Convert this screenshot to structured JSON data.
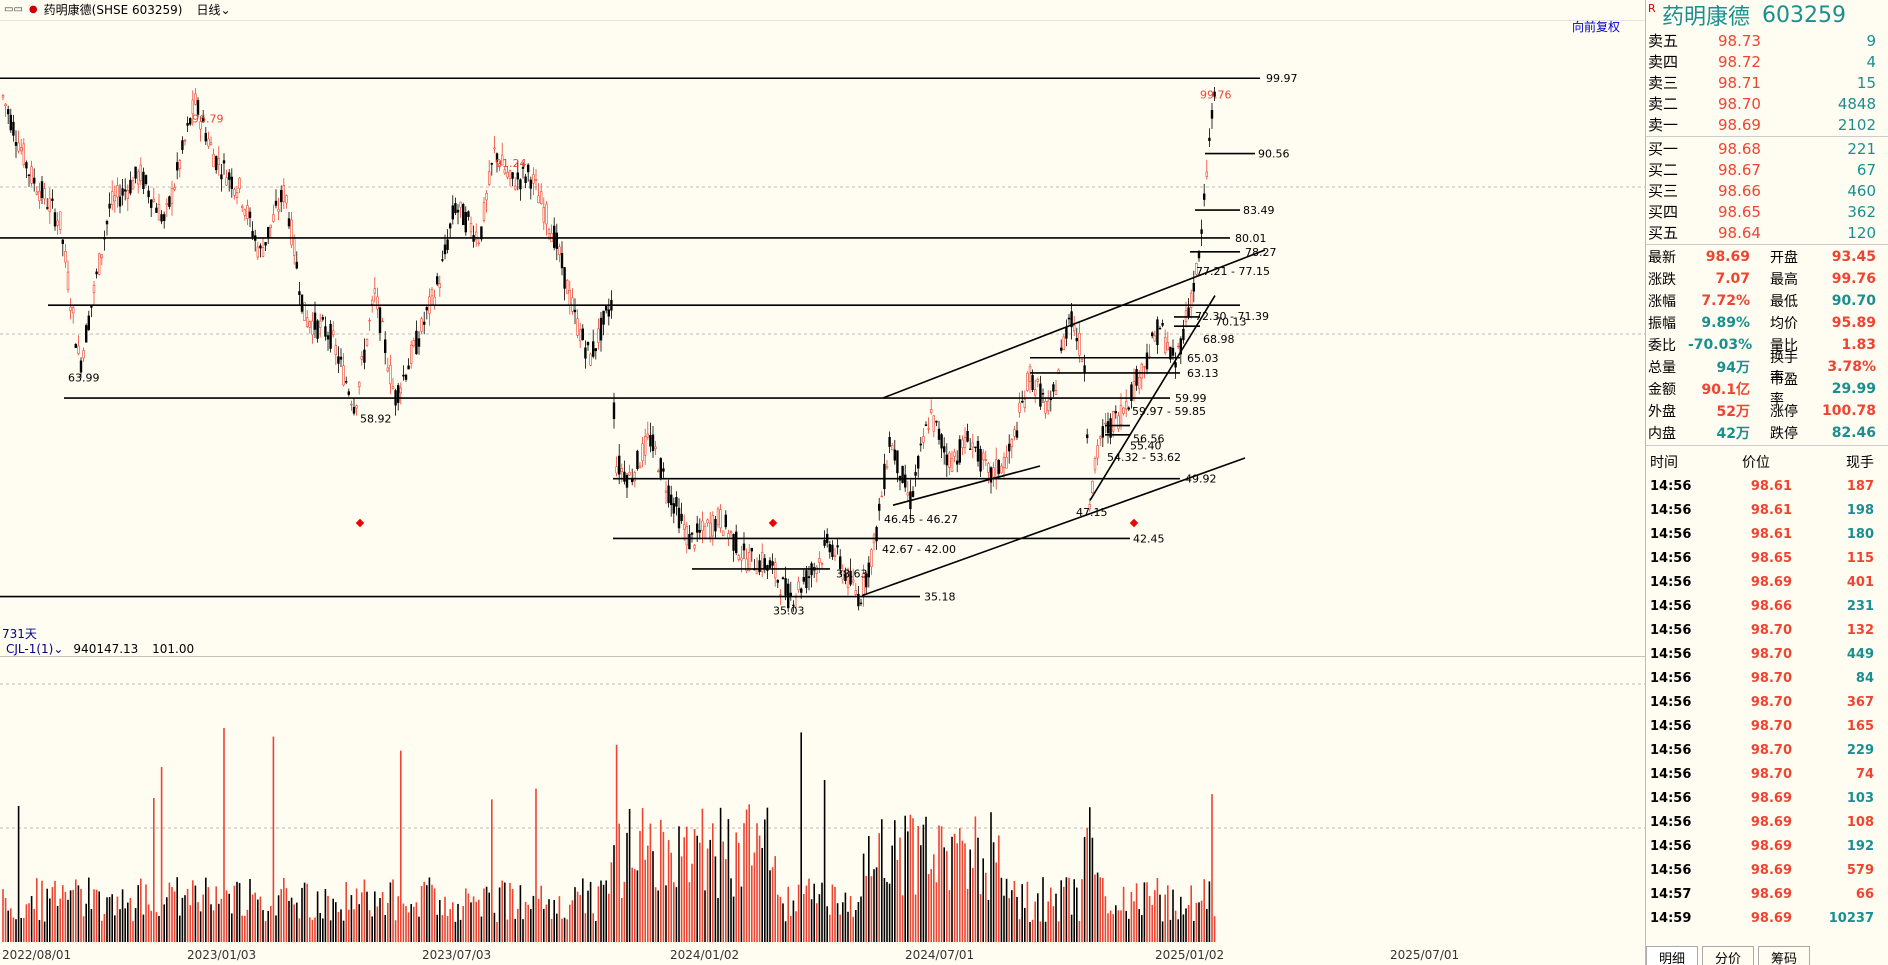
{
  "toolbar": {
    "window_icon": "▭▭",
    "title": "药明康德(SHSE 603259)",
    "period": "日线",
    "restore": "向前复权"
  },
  "main_chart": {
    "days_label": "731天",
    "price_labels": [
      {
        "text": "96.79",
        "color": "#e43"
      },
      {
        "text": "91.24",
        "color": "#e43"
      },
      {
        "text": "99.76",
        "color": "#e43"
      },
      {
        "text": "63.99",
        "color": "#000"
      },
      {
        "text": "58.92",
        "color": "#000"
      },
      {
        "text": "35.03",
        "color": "#000"
      },
      {
        "text": "38.63",
        "color": "#000"
      },
      {
        "text": "42.67 - 42.00",
        "color": "#000"
      },
      {
        "text": "46.45 - 46.27",
        "color": "#000"
      },
      {
        "text": "47.15",
        "color": "#000"
      },
      {
        "text": "54.32 - 53.62",
        "color": "#000"
      },
      {
        "text": "55.40",
        "color": "#000"
      },
      {
        "text": "56.56",
        "color": "#000"
      },
      {
        "text": "59.97 - 59.85",
        "color": "#000"
      },
      {
        "text": "77.21 - 77.15",
        "color": "#000"
      },
      {
        "text": "72.30 - 71.39",
        "color": "#000"
      },
      {
        "text": "70.13",
        "color": "#000"
      },
      {
        "text": "68.98",
        "color": "#000"
      }
    ],
    "line_labels": [
      "99.97",
      "90.56",
      "83.49",
      "80.01",
      "78.27",
      "65.03",
      "63.13",
      "59.99",
      "49.92",
      "42.45",
      "35.18"
    ]
  },
  "indicator": {
    "name": "CJL-1(1)",
    "value1": "940147.13",
    "value2": "101.00"
  },
  "x_axis": [
    "2022/08/01",
    "2023/01/03",
    "2023/07/03",
    "2024/01/02",
    "2024/07/01",
    "2025/01/02",
    "2025/07/01"
  ],
  "quote": {
    "rtag": "R",
    "name": "药明康德",
    "code": "603259",
    "asks": [
      {
        "label": "卖五",
        "price": "98.73",
        "vol": "9"
      },
      {
        "label": "卖四",
        "price": "98.72",
        "vol": "4"
      },
      {
        "label": "卖三",
        "price": "98.71",
        "vol": "15"
      },
      {
        "label": "卖二",
        "price": "98.70",
        "vol": "4848"
      },
      {
        "label": "卖一",
        "price": "98.69",
        "vol": "2102"
      }
    ],
    "bids": [
      {
        "label": "买一",
        "price": "98.68",
        "vol": "221"
      },
      {
        "label": "买二",
        "price": "98.67",
        "vol": "67"
      },
      {
        "label": "买三",
        "price": "98.66",
        "vol": "460"
      },
      {
        "label": "买四",
        "price": "98.65",
        "vol": "362"
      },
      {
        "label": "买五",
        "price": "98.64",
        "vol": "120"
      }
    ],
    "stats": [
      {
        "k1": "最新",
        "v1": "98.69",
        "c1": "red",
        "k2": "开盘",
        "v2": "93.45",
        "c2": "red"
      },
      {
        "k1": "涨跌",
        "v1": "7.07",
        "c1": "red",
        "k2": "最高",
        "v2": "99.76",
        "c2": "red"
      },
      {
        "k1": "涨幅",
        "v1": "7.72%",
        "c1": "red",
        "k2": "最低",
        "v2": "90.70",
        "c2": "teal"
      },
      {
        "k1": "振幅",
        "v1": "9.89%",
        "c1": "teal",
        "k2": "均价",
        "v2": "95.89",
        "c2": "red"
      },
      {
        "k1": "委比",
        "v1": "-70.03%",
        "c1": "teal",
        "k2": "量比",
        "v2": "1.83",
        "c2": "red"
      },
      {
        "k1": "总量",
        "v1": "94万",
        "c1": "teal",
        "k2": "换手率",
        "v2": "3.78%",
        "c2": "red"
      },
      {
        "k1": "金额",
        "v1": "90.1亿",
        "c1": "red",
        "k2": "市盈率",
        "v2": "29.99",
        "c2": "teal"
      },
      {
        "k1": "外盘",
        "v1": "52万",
        "c1": "red",
        "k2": "涨停",
        "v2": "100.78",
        "c2": "red"
      },
      {
        "k1": "内盘",
        "v1": "42万",
        "c1": "teal",
        "k2": "跌停",
        "v2": "82.46",
        "c2": "teal"
      }
    ],
    "tick_header": {
      "time": "时间",
      "price": "价位",
      "qty": "现手"
    },
    "ticks": [
      {
        "time": "14:56",
        "price": "98.61",
        "qty": "187",
        "c": "red"
      },
      {
        "time": "14:56",
        "price": "98.61",
        "qty": "198",
        "c": "teal"
      },
      {
        "time": "14:56",
        "price": "98.61",
        "qty": "180",
        "c": "teal"
      },
      {
        "time": "14:56",
        "price": "98.65",
        "qty": "115",
        "c": "red"
      },
      {
        "time": "14:56",
        "price": "98.69",
        "qty": "401",
        "c": "red"
      },
      {
        "time": "14:56",
        "price": "98.66",
        "qty": "231",
        "c": "teal"
      },
      {
        "time": "14:56",
        "price": "98.70",
        "qty": "132",
        "c": "red"
      },
      {
        "time": "14:56",
        "price": "98.70",
        "qty": "449",
        "c": "teal"
      },
      {
        "time": "14:56",
        "price": "98.70",
        "qty": "84",
        "c": "teal"
      },
      {
        "time": "14:56",
        "price": "98.70",
        "qty": "367",
        "c": "red"
      },
      {
        "time": "14:56",
        "price": "98.70",
        "qty": "165",
        "c": "red"
      },
      {
        "time": "14:56",
        "price": "98.70",
        "qty": "229",
        "c": "teal"
      },
      {
        "time": "14:56",
        "price": "98.70",
        "qty": "74",
        "c": "red"
      },
      {
        "time": "14:56",
        "price": "98.69",
        "qty": "103",
        "c": "teal"
      },
      {
        "time": "14:56",
        "price": "98.69",
        "qty": "108",
        "c": "red"
      },
      {
        "time": "14:56",
        "price": "98.69",
        "qty": "192",
        "c": "teal"
      },
      {
        "time": "14:56",
        "price": "98.69",
        "qty": "579",
        "c": "red"
      },
      {
        "time": "14:57",
        "price": "98.69",
        "qty": "66",
        "c": "red"
      },
      {
        "time": "14:59",
        "price": "98.69",
        "qty": "10237",
        "c": "teal"
      }
    ],
    "tabs": [
      "明细",
      "分价",
      "筹码"
    ]
  },
  "colors": {
    "up": "#e43",
    "down": "#000",
    "teal": "#1a8f8f",
    "bg": "#fffdf2"
  }
}
